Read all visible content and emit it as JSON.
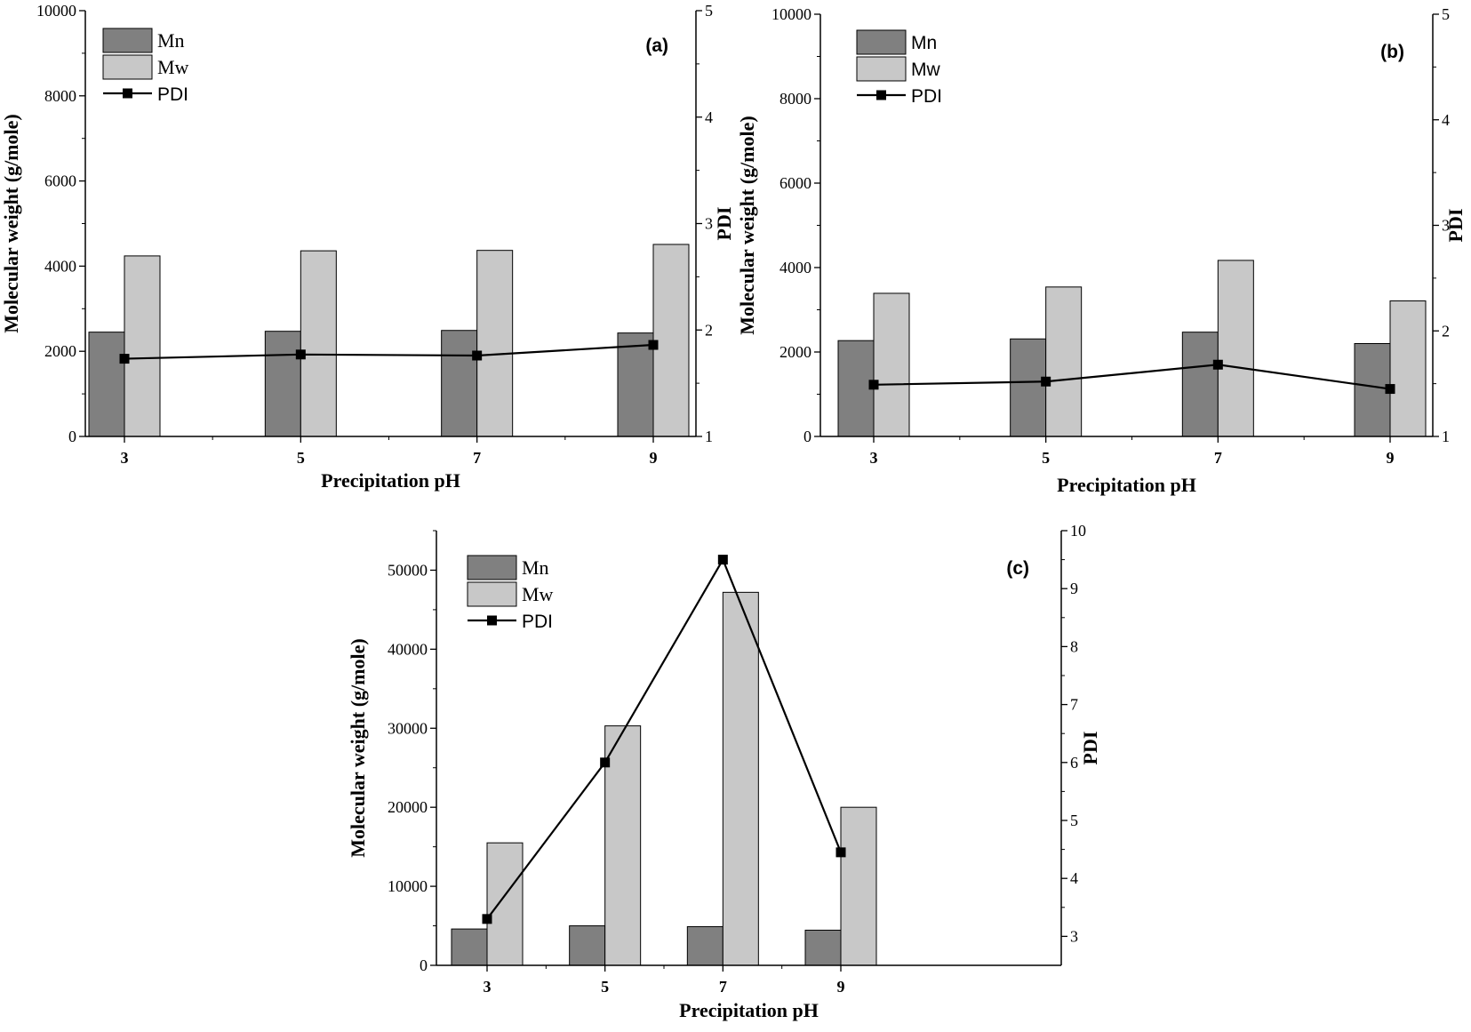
{
  "chart_data": [
    {
      "type": "bar",
      "panel_label": "(a)",
      "categories": [
        "3",
        "5",
        "7",
        "9"
      ],
      "xlabel": "Precipitation pH",
      "ylabel": "Molecular weight (g/mole)",
      "y2label": "PDI",
      "ylim": [
        0,
        10000
      ],
      "y2lim": [
        1,
        5
      ],
      "yticks": [
        "0",
        "2000",
        "4000",
        "6000",
        "8000",
        "10000"
      ],
      "y2ticks": [
        "1",
        "2",
        "3",
        "4",
        "5"
      ],
      "legend_position": "top-left",
      "series": [
        {
          "name": "Mn",
          "kind": "bar",
          "color": "#808080",
          "values": [
            2450,
            2470,
            2490,
            2430
          ]
        },
        {
          "name": "Mw",
          "kind": "bar",
          "color": "#c8c8c8",
          "values": [
            4240,
            4360,
            4370,
            4510
          ]
        },
        {
          "name": "PDI",
          "kind": "line",
          "axis": "right",
          "color": "#000000",
          "values": [
            1.73,
            1.77,
            1.76,
            1.86
          ]
        }
      ]
    },
    {
      "type": "bar",
      "panel_label": "(b)",
      "categories": [
        "3",
        "5",
        "7",
        "9"
      ],
      "xlabel": "Precipitation pH",
      "ylabel": "Molecular weight (g/mole)",
      "y2label": "PDI",
      "ylim": [
        0,
        10000
      ],
      "y2lim": [
        1,
        5
      ],
      "yticks": [
        "0",
        "2000",
        "4000",
        "6000",
        "8000",
        "10000"
      ],
      "y2ticks": [
        "1",
        "2",
        "3",
        "4",
        "5"
      ],
      "legend_position": "top-left",
      "series": [
        {
          "name": "Mn",
          "kind": "bar",
          "color": "#808080",
          "values": [
            2270,
            2310,
            2470,
            2200
          ]
        },
        {
          "name": "Mw",
          "kind": "bar",
          "color": "#c8c8c8",
          "values": [
            3390,
            3540,
            4170,
            3210
          ]
        },
        {
          "name": "PDI",
          "kind": "line",
          "axis": "right",
          "color": "#000000",
          "values": [
            1.49,
            1.52,
            1.68,
            1.45
          ]
        }
      ]
    },
    {
      "type": "bar",
      "panel_label": "(c)",
      "categories": [
        "3",
        "5",
        "7",
        "9"
      ],
      "xlabel": "Precipitation pH",
      "ylabel": "Molecular weight (g/mole)",
      "y2label": "PDI",
      "ylim": [
        0,
        55000
      ],
      "y2lim": [
        2.5,
        10
      ],
      "yticks": [
        "0",
        "10000",
        "20000",
        "30000",
        "40000",
        "50000"
      ],
      "y2ticks": [
        "3",
        "4",
        "5",
        "6",
        "7",
        "8",
        "9",
        "10"
      ],
      "legend_position": "top-left",
      "series": [
        {
          "name": "Mn",
          "kind": "bar",
          "color": "#808080",
          "values": [
            4600,
            5000,
            4900,
            4450
          ]
        },
        {
          "name": "Mw",
          "kind": "bar",
          "color": "#c8c8c8",
          "values": [
            15500,
            30300,
            47200,
            20000
          ]
        },
        {
          "name": "PDI",
          "kind": "line",
          "axis": "right",
          "color": "#000000",
          "values": [
            3.3,
            6.0,
            9.5,
            4.45
          ]
        }
      ]
    }
  ]
}
